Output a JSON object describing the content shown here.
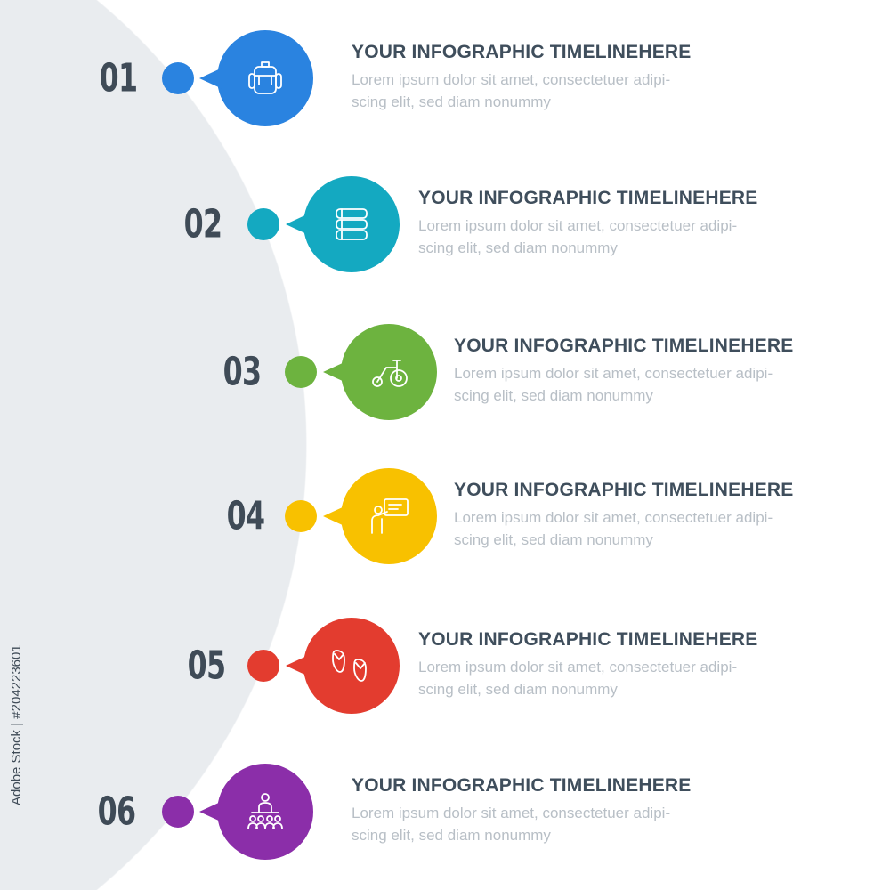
{
  "watermark": "Adobe Stock | #204223601",
  "steps": [
    {
      "number": "01",
      "color": "#2a83e0",
      "icon": "backpack-icon",
      "title": "YOUR INFOGRAPHIC TIMELINEHERE",
      "line1": "Lorem ipsum dolor sit amet, consectetuer adipi-",
      "line2": "scing elit, sed diam nonummy"
    },
    {
      "number": "02",
      "color": "#14a9c1",
      "icon": "books-icon",
      "title": "YOUR INFOGRAPHIC TIMELINEHERE",
      "line1": "Lorem ipsum dolor sit amet, consectetuer adipi-",
      "line2": "scing elit, sed diam nonummy"
    },
    {
      "number": "03",
      "color": "#6db33f",
      "icon": "tricycle-icon",
      "title": "YOUR INFOGRAPHIC TIMELINEHERE",
      "line1": "Lorem ipsum dolor sit amet, consectetuer adipi-",
      "line2": "scing elit, sed diam nonummy"
    },
    {
      "number": "04",
      "color": "#f8c100",
      "icon": "teacher-board-icon",
      "title": "YOUR INFOGRAPHIC TIMELINEHERE",
      "line1": "Lorem ipsum dolor sit amet, consectetuer adipi-",
      "line2": "scing elit, sed diam nonummy"
    },
    {
      "number": "05",
      "color": "#e33c2f",
      "icon": "flip-flops-icon",
      "title": "YOUR INFOGRAPHIC TIMELINEHERE",
      "line1": "Lorem ipsum dolor sit amet, consectetuer adipi-",
      "line2": "scing elit, sed diam nonummy"
    },
    {
      "number": "06",
      "color": "#8b2ea9",
      "icon": "audience-icon",
      "title": "YOUR INFOGRAPHIC TIMELINEHERE",
      "line1": "Lorem ipsum dolor sit amet, consectetuer adipi-",
      "line2": "scing elit, sed diam nonummy"
    }
  ]
}
